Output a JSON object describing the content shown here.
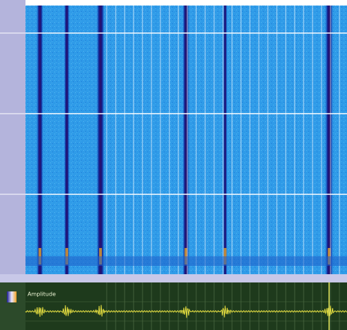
{
  "panel": {
    "label": "Amplitude"
  }
}
